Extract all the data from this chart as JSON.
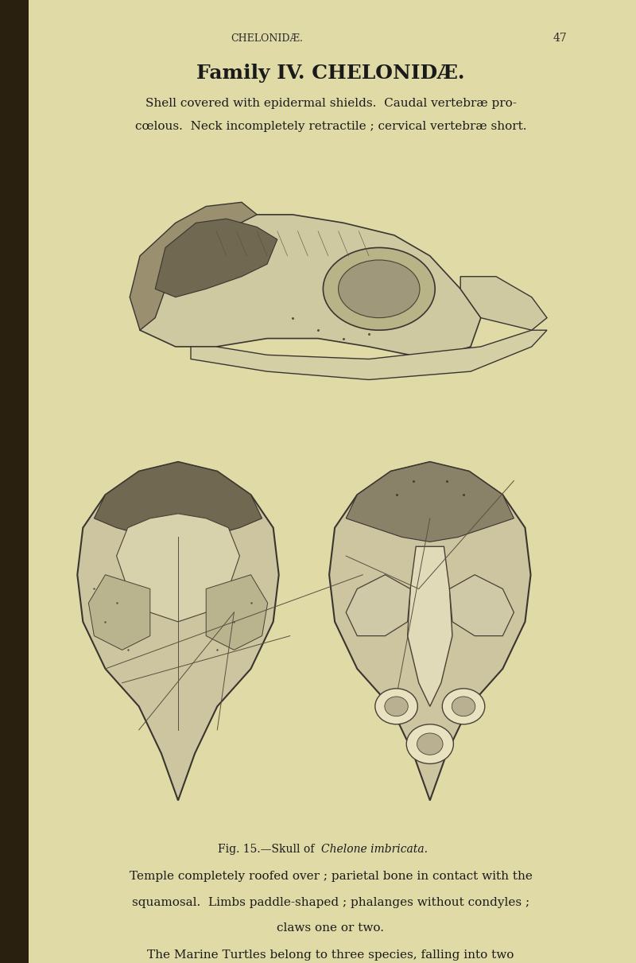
{
  "background_color": "#e2dca8",
  "page_color": "#e0daa6",
  "header_text": "CHELONIDÆ.",
  "page_number": "47",
  "title": "Family IV. CHELONIDÆ.",
  "body_text_1a": "Shell covered with epidermal shields.  Caudal vertebræ pro-",
  "body_text_1b": "cœlous.  Neck incompletely retractile ; cervical vertebræ short.",
  "caption_normal": "Fig. 15.—Skull of ",
  "caption_italic": "Chelone imbricata.",
  "body_text_2a": "Temple completely roofed over ; parietal bone in contact with the",
  "body_text_2b": "squamosal.  Limbs paddle-shaped ; phalanges without condyles ;",
  "body_text_2c": "claws one or two.",
  "body_text_3": "The Marine Turtles belong to three species, falling into two",
  "text_color": "#1a1a1a",
  "header_color": "#2a2a2a",
  "font_size_header": 9,
  "font_size_title": 18,
  "font_size_body": 11,
  "font_size_caption": 10,
  "left_bar_color": "#2a2010"
}
